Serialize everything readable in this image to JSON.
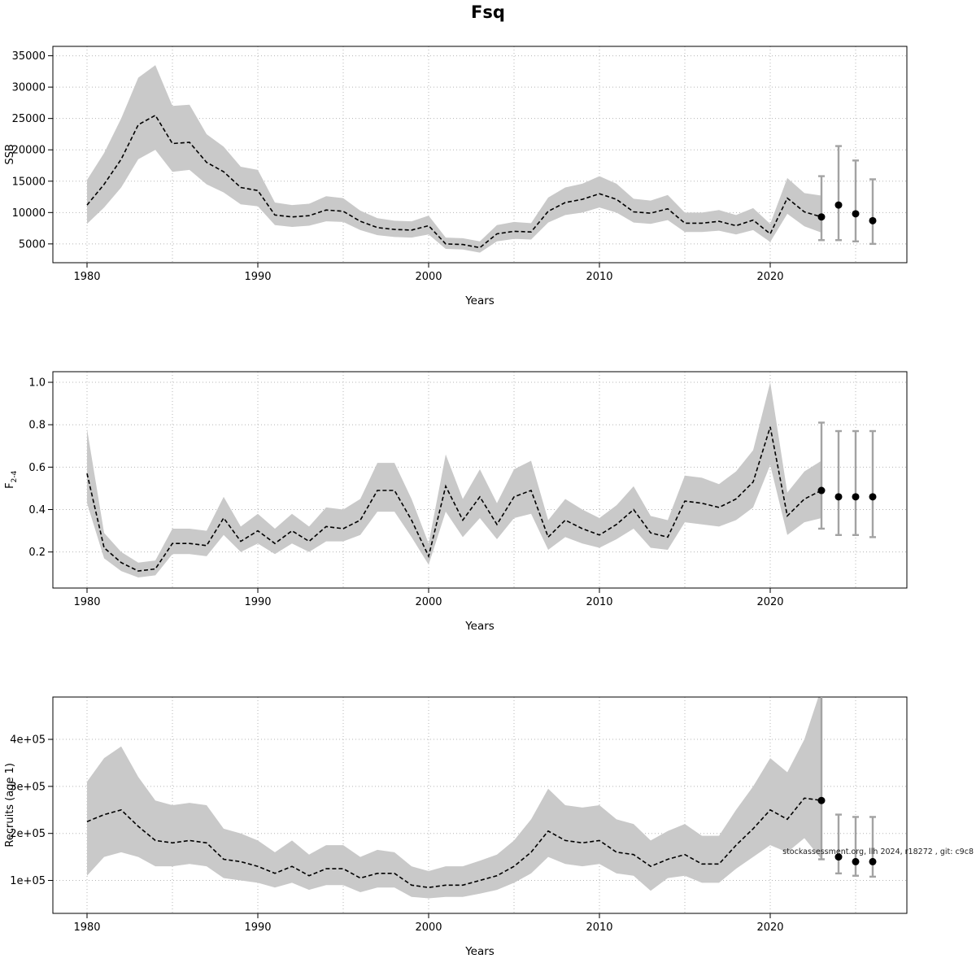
{
  "title": "Fsq",
  "watermark": "stockassessment.org, llh 2024, r18272 , git: c9c8",
  "chart_data": {
    "type": "line",
    "x_domain": [
      1978,
      2028
    ],
    "x_ticks": [
      1980,
      1990,
      2000,
      2010,
      2020
    ],
    "x_grid": [
      1980,
      1985,
      1990,
      1995,
      2000,
      2005,
      2010,
      2015,
      2020,
      2025
    ],
    "band_color": "#c9c9c9",
    "line_color": "#000000",
    "ci_color": "#a3a3a3",
    "grid_on": true,
    "legend": "none",
    "panels": [
      {
        "id": "ssb",
        "ylabel": "SSB",
        "ylabel_sub": "",
        "xlabel": "Years",
        "ylim": [
          2000,
          36500
        ],
        "yticks": [
          {
            "v": 5000,
            "label": "5000"
          },
          {
            "v": 10000,
            "label": "10000"
          },
          {
            "v": 15000,
            "label": "15000"
          },
          {
            "v": 20000,
            "label": "20000"
          },
          {
            "v": 25000,
            "label": "25000"
          },
          {
            "v": 30000,
            "label": "30000"
          },
          {
            "v": 35000,
            "label": "35000"
          }
        ],
        "years": [
          1980,
          1981,
          1982,
          1983,
          1984,
          1985,
          1986,
          1987,
          1988,
          1989,
          1990,
          1991,
          1992,
          1993,
          1994,
          1995,
          1996,
          1997,
          1998,
          1999,
          2000,
          2001,
          2002,
          2003,
          2004,
          2005,
          2006,
          2007,
          2008,
          2009,
          2010,
          2011,
          2012,
          2013,
          2014,
          2015,
          2016,
          2017,
          2018,
          2019,
          2020,
          2021,
          2022,
          2023
        ],
        "mean": [
          11200,
          14500,
          18500,
          24000,
          25500,
          21000,
          21200,
          18000,
          16500,
          14000,
          13500,
          9600,
          9300,
          9500,
          10400,
          10200,
          8600,
          7600,
          7300,
          7200,
          7900,
          5000,
          4900,
          4400,
          6600,
          7000,
          6900,
          10200,
          11600,
          12100,
          13000,
          12100,
          10100,
          9900,
          10600,
          8300,
          8300,
          8600,
          7900,
          8800,
          6600,
          12300,
          10100,
          9300
        ],
        "lo": [
          8200,
          10800,
          14000,
          18500,
          20000,
          16500,
          16800,
          14500,
          13200,
          11300,
          11000,
          8000,
          7700,
          7900,
          8600,
          8500,
          7200,
          6400,
          6100,
          6000,
          6500,
          4200,
          4100,
          3600,
          5400,
          5800,
          5700,
          8400,
          9600,
          10000,
          10800,
          10000,
          8400,
          8200,
          8800,
          6900,
          6900,
          7100,
          6500,
          7200,
          5300,
          9800,
          7800,
          6800
        ],
        "hi": [
          15200,
          19500,
          25000,
          31500,
          33500,
          27000,
          27200,
          22500,
          20500,
          17300,
          16800,
          11600,
          11200,
          11400,
          12600,
          12300,
          10300,
          9100,
          8700,
          8600,
          9500,
          6000,
          5900,
          5400,
          8000,
          8500,
          8300,
          12400,
          14000,
          14600,
          15800,
          14600,
          12200,
          11900,
          12800,
          10000,
          10000,
          10400,
          9600,
          10700,
          8200,
          15500,
          13100,
          12700
        ],
        "forecast": [
          {
            "year": 2023,
            "value": 9300,
            "lo": 5600,
            "hi": 15800
          },
          {
            "year": 2024,
            "value": 11200,
            "lo": 5600,
            "hi": 20600
          },
          {
            "year": 2025,
            "value": 9800,
            "lo": 5400,
            "hi": 18300
          },
          {
            "year": 2026,
            "value": 8700,
            "lo": 5000,
            "hi": 15300
          }
        ]
      },
      {
        "id": "fbar",
        "ylabel": "F",
        "ylabel_sub": "2-4",
        "xlabel": "Years",
        "ylim": [
          0.03,
          1.05
        ],
        "yticks": [
          {
            "v": 0.2,
            "label": "0.2"
          },
          {
            "v": 0.4,
            "label": "0.4"
          },
          {
            "v": 0.6,
            "label": "0.6"
          },
          {
            "v": 0.8,
            "label": "0.8"
          },
          {
            "v": 1.0,
            "label": "1.0"
          }
        ],
        "years": [
          1980,
          1981,
          1982,
          1983,
          1984,
          1985,
          1986,
          1987,
          1988,
          1989,
          1990,
          1991,
          1992,
          1993,
          1994,
          1995,
          1996,
          1997,
          1998,
          1999,
          2000,
          2001,
          2002,
          2003,
          2004,
          2005,
          2006,
          2007,
          2008,
          2009,
          2010,
          2011,
          2012,
          2013,
          2014,
          2015,
          2016,
          2017,
          2018,
          2019,
          2020,
          2021,
          2022,
          2023
        ],
        "mean": [
          0.57,
          0.22,
          0.15,
          0.11,
          0.12,
          0.24,
          0.24,
          0.23,
          0.36,
          0.25,
          0.3,
          0.24,
          0.3,
          0.25,
          0.32,
          0.31,
          0.35,
          0.49,
          0.49,
          0.35,
          0.18,
          0.51,
          0.35,
          0.46,
          0.33,
          0.46,
          0.49,
          0.27,
          0.35,
          0.31,
          0.28,
          0.33,
          0.4,
          0.29,
          0.27,
          0.44,
          0.43,
          0.41,
          0.45,
          0.53,
          0.79,
          0.37,
          0.45,
          0.49
        ],
        "lo": [
          0.43,
          0.17,
          0.11,
          0.08,
          0.09,
          0.19,
          0.19,
          0.18,
          0.28,
          0.2,
          0.24,
          0.19,
          0.24,
          0.2,
          0.25,
          0.25,
          0.28,
          0.39,
          0.39,
          0.27,
          0.14,
          0.39,
          0.27,
          0.36,
          0.26,
          0.36,
          0.38,
          0.21,
          0.27,
          0.24,
          0.22,
          0.26,
          0.31,
          0.22,
          0.21,
          0.34,
          0.33,
          0.32,
          0.35,
          0.41,
          0.61,
          0.28,
          0.34,
          0.36
        ],
        "hi": [
          0.78,
          0.29,
          0.2,
          0.15,
          0.16,
          0.31,
          0.31,
          0.3,
          0.46,
          0.32,
          0.38,
          0.31,
          0.38,
          0.32,
          0.41,
          0.4,
          0.45,
          0.62,
          0.62,
          0.45,
          0.24,
          0.66,
          0.45,
          0.59,
          0.43,
          0.59,
          0.63,
          0.35,
          0.45,
          0.4,
          0.36,
          0.42,
          0.51,
          0.37,
          0.35,
          0.56,
          0.55,
          0.52,
          0.58,
          0.68,
          1.0,
          0.48,
          0.58,
          0.63
        ],
        "forecast": [
          {
            "year": 2023,
            "value": 0.49,
            "lo": 0.31,
            "hi": 0.81
          },
          {
            "year": 2024,
            "value": 0.46,
            "lo": 0.28,
            "hi": 0.77
          },
          {
            "year": 2025,
            "value": 0.46,
            "lo": 0.28,
            "hi": 0.77
          },
          {
            "year": 2026,
            "value": 0.46,
            "lo": 0.27,
            "hi": 0.77
          }
        ]
      },
      {
        "id": "recruits",
        "ylabel": "Recruits (age 1)",
        "ylabel_sub": "",
        "xlabel": "Years",
        "ylim": [
          30000,
          490000
        ],
        "yticks": [
          {
            "v": 100000,
            "label": "1e+05"
          },
          {
            "v": 200000,
            "label": "2e+05"
          },
          {
            "v": 300000,
            "label": "3e+05"
          },
          {
            "v": 400000,
            "label": "4e+05"
          }
        ],
        "years": [
          1980,
          1981,
          1982,
          1983,
          1984,
          1985,
          1986,
          1987,
          1988,
          1989,
          1990,
          1991,
          1992,
          1993,
          1994,
          1995,
          1996,
          1997,
          1998,
          1999,
          2000,
          2001,
          2002,
          2003,
          2004,
          2005,
          2006,
          2007,
          2008,
          2009,
          2010,
          2011,
          2012,
          2013,
          2014,
          2015,
          2016,
          2017,
          2018,
          2019,
          2020,
          2021,
          2022,
          2023
        ],
        "mean": [
          225000,
          240000,
          250000,
          215000,
          185000,
          180000,
          185000,
          180000,
          145000,
          140000,
          130000,
          115000,
          130000,
          110000,
          125000,
          125000,
          105000,
          115000,
          115000,
          90000,
          85000,
          90000,
          90000,
          100000,
          110000,
          130000,
          160000,
          205000,
          185000,
          180000,
          185000,
          160000,
          155000,
          130000,
          145000,
          155000,
          135000,
          135000,
          175000,
          210000,
          250000,
          230000,
          275000,
          270000
        ],
        "lo": [
          110000,
          150000,
          160000,
          150000,
          130000,
          130000,
          135000,
          130000,
          105000,
          100000,
          95000,
          85000,
          95000,
          80000,
          90000,
          90000,
          75000,
          85000,
          85000,
          65000,
          62000,
          65000,
          65000,
          72000,
          80000,
          95000,
          115000,
          150000,
          135000,
          130000,
          135000,
          115000,
          110000,
          78000,
          105000,
          110000,
          95000,
          95000,
          125000,
          150000,
          175000,
          160000,
          190000,
          145000
        ],
        "hi": [
          310000,
          360000,
          385000,
          320000,
          270000,
          260000,
          265000,
          260000,
          210000,
          200000,
          185000,
          160000,
          185000,
          155000,
          175000,
          175000,
          150000,
          165000,
          160000,
          130000,
          120000,
          130000,
          130000,
          142000,
          155000,
          185000,
          230000,
          295000,
          260000,
          255000,
          260000,
          230000,
          220000,
          185000,
          205000,
          220000,
          195000,
          195000,
          250000,
          300000,
          360000,
          330000,
          400000,
          510000
        ],
        "forecast": [
          {
            "year": 2023,
            "value": 270000,
            "lo": 145000,
            "hi": 530000
          },
          {
            "year": 2024,
            "value": 150000,
            "lo": 115000,
            "hi": 240000
          },
          {
            "year": 2025,
            "value": 140000,
            "lo": 110000,
            "hi": 235000
          },
          {
            "year": 2026,
            "value": 140000,
            "lo": 108000,
            "hi": 235000
          }
        ]
      }
    ]
  }
}
